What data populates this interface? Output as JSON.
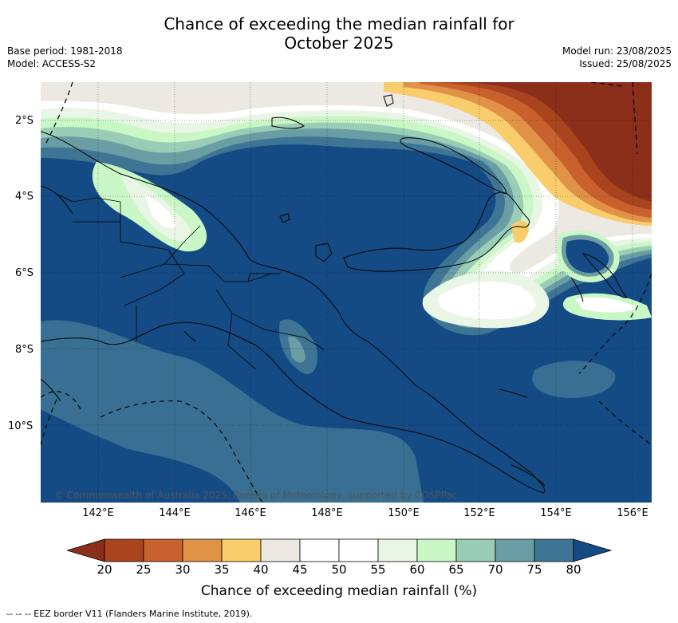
{
  "title_line1": "Chance of exceeding the median rainfall for",
  "title_line2": "October 2025",
  "meta_left": {
    "base_period": "Base period: 1981-2018",
    "model": "Model: ACCESS-S2"
  },
  "meta_right": {
    "model_run": "Model run: 23/08/2025",
    "issued": "Issued: 25/08/2025"
  },
  "map": {
    "lat_labels": [
      "2°S",
      "4°S",
      "6°S",
      "8°S",
      "10°S"
    ],
    "lon_labels": [
      "142°E",
      "144°E",
      "146°E",
      "148°E",
      "150°E",
      "152°E",
      "154°E",
      "156°E"
    ],
    "copyright": "© Commonwealth of Australia 2025, Bureau of Meteorology, supported by COSPPac"
  },
  "colorbar": {
    "ticks": [
      "20",
      "25",
      "30",
      "35",
      "40",
      "45",
      "50",
      "55",
      "60",
      "65",
      "70",
      "75",
      "80"
    ],
    "under_color": "#8b2f1a",
    "over_color": "#154b85",
    "colors": [
      "#a9441f",
      "#c9612e",
      "#e09247",
      "#f9cc6c",
      "#ece8e2",
      "#ffffff",
      "#ffffff",
      "#e9f6e5",
      "#c9f7c6",
      "#9acdb6",
      "#6a9ea4",
      "#3f7594"
    ],
    "label": "Chance of exceeding median rainfall (%)"
  },
  "legend_note": "--  --  -- EEZ border V11 (Flanders Marine Institute, 2019)."
}
